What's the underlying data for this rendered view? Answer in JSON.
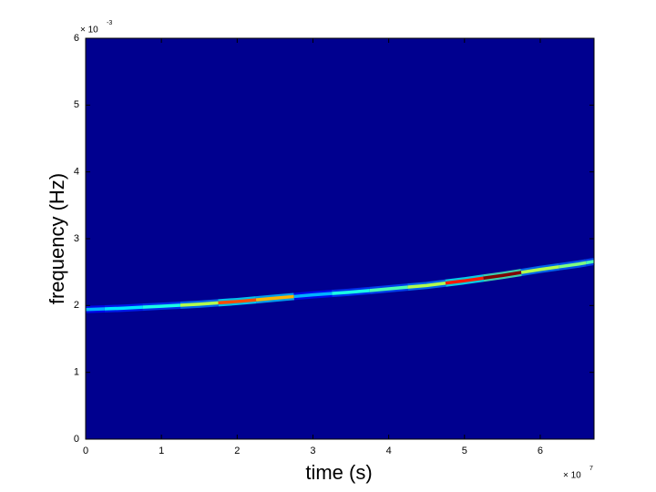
{
  "chart_data": {
    "type": "spectrogram",
    "x_label": "time (s)",
    "y_label": "frequency (Hz)",
    "x_exponent": {
      "base": "× 10",
      "power": "7"
    },
    "y_exponent": {
      "base": "× 10",
      "power": "-3"
    },
    "colormap": "jet",
    "background_color": "#00008f",
    "x": [
      0,
      0.5,
      1,
      1.5,
      2,
      2.5,
      3,
      3.5,
      4,
      4.5,
      5,
      5.5,
      6,
      6.5,
      6.71
    ],
    "values": [
      1.94,
      1.96,
      1.99,
      2.02,
      2.06,
      2.11,
      2.16,
      2.2,
      2.25,
      2.3,
      2.37,
      2.45,
      2.54,
      2.62,
      2.66
    ],
    "intensity": [
      0.3,
      0.35,
      0.4,
      0.55,
      0.8,
      0.7,
      0.3,
      0.4,
      0.45,
      0.55,
      0.85,
      1.0,
      0.55,
      0.5,
      0.45
    ],
    "xlim": [
      0,
      6.71
    ],
    "ylim": [
      0,
      6
    ],
    "xticks": [
      0,
      1,
      2,
      3,
      4,
      5,
      6
    ],
    "yticks": [
      0,
      1,
      2,
      3,
      4,
      5,
      6
    ]
  }
}
